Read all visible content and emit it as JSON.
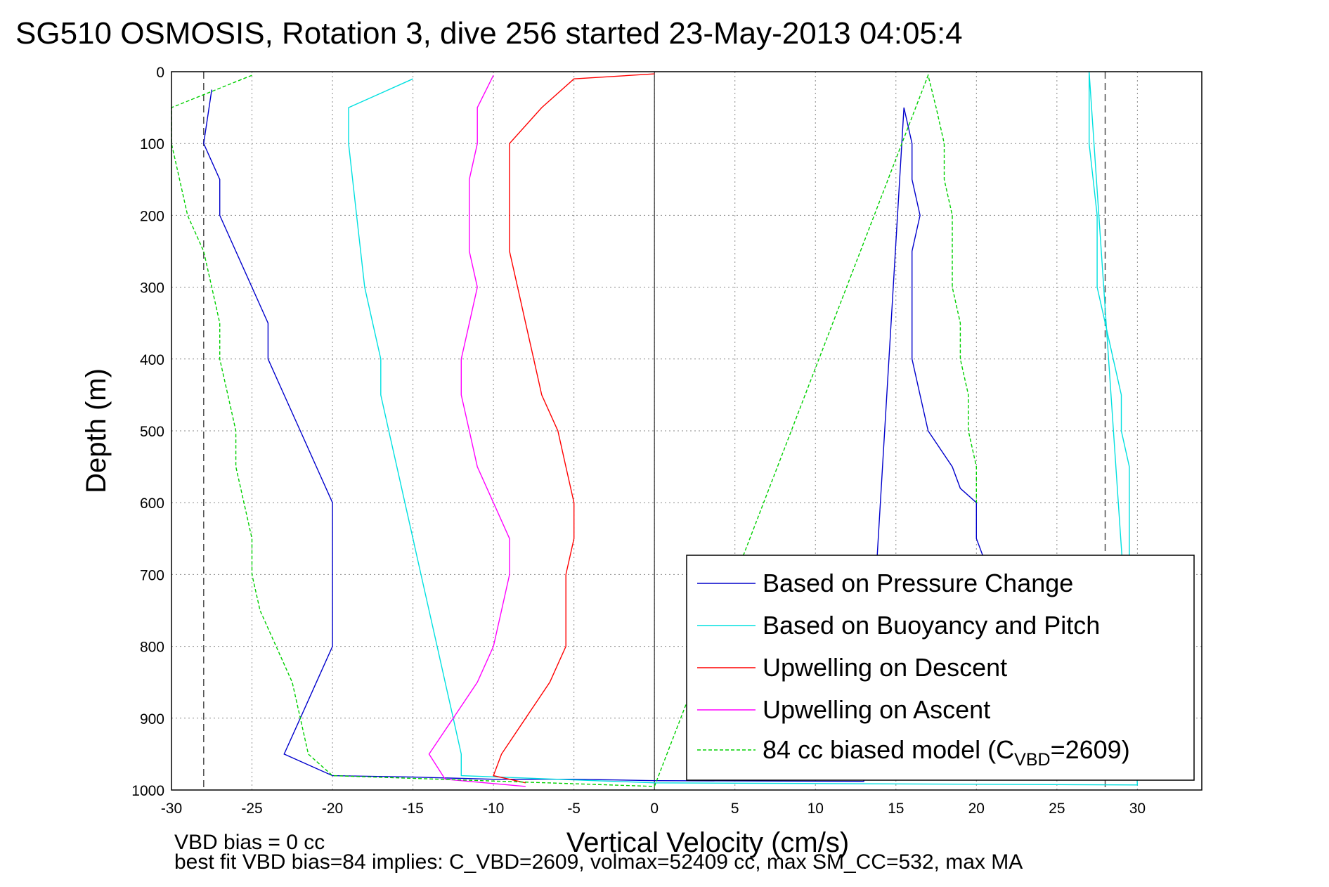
{
  "title": "SG510 OSMOSIS, Rotation 3, dive 256 started 23-May-2013 04:05:4",
  "notes": {
    "line1": "VBD bias = 0 cc",
    "line2": "best fit VBD bias=84 implies: C_VBD=2609, volmax=52409 cc, max SM_CC=532, max MA"
  },
  "colors": {
    "pressure": "#0000cc",
    "buoyancy": "#00e0e0",
    "descent": "#ff0000",
    "ascent": "#ff00ff",
    "model": "#00d000"
  },
  "chart_data": {
    "type": "line",
    "title": "SG510 OSMOSIS, Rotation 3, dive 256 started 23-May-2013 04:05:4",
    "xlabel": "Vertical Velocity (cm/s)",
    "ylabel": "Depth (m)",
    "xlim": [
      -30,
      34
    ],
    "ylim": [
      0,
      1000
    ],
    "y_reversed": true,
    "grid": true,
    "x_ticks": [
      -30,
      -25,
      -20,
      -15,
      -10,
      -5,
      0,
      5,
      10,
      15,
      20,
      25,
      30
    ],
    "y_ticks": [
      0,
      100,
      200,
      300,
      400,
      500,
      600,
      700,
      800,
      900,
      1000
    ],
    "reference_lines": {
      "dashed_x": [
        -28,
        28
      ],
      "solid_x": [
        0
      ]
    },
    "legend_position": "bottom-right",
    "series": [
      {
        "name": "Based on Pressure Change",
        "key": "pressure",
        "style": "solid",
        "points": [
          [
            -27.5,
            25
          ],
          [
            -28,
            100
          ],
          [
            -27,
            150
          ],
          [
            -27,
            200
          ],
          [
            -26,
            250
          ],
          [
            -25,
            300
          ],
          [
            -24,
            350
          ],
          [
            -24,
            400
          ],
          [
            -23,
            450
          ],
          [
            -22,
            500
          ],
          [
            -21,
            550
          ],
          [
            -20,
            600
          ],
          [
            -20,
            650
          ],
          [
            -20,
            700
          ],
          [
            -20,
            750
          ],
          [
            -20,
            800
          ],
          [
            -21,
            850
          ],
          [
            -22,
            900
          ],
          [
            -23,
            950
          ],
          [
            -20,
            980
          ],
          [
            -15,
            982
          ],
          [
            -10,
            985
          ],
          [
            -5,
            985
          ],
          [
            0,
            987
          ],
          [
            13,
            988
          ],
          [
            15.5,
            50
          ],
          [
            16,
            100
          ],
          [
            16,
            150
          ],
          [
            16.5,
            200
          ],
          [
            16,
            250
          ],
          [
            16,
            300
          ],
          [
            16,
            350
          ],
          [
            16,
            400
          ],
          [
            16.5,
            450
          ],
          [
            17,
            500
          ],
          [
            18.5,
            550
          ],
          [
            19,
            580
          ],
          [
            20,
            600
          ],
          [
            20,
            650
          ],
          [
            20.5,
            680
          ]
        ]
      },
      {
        "name": "Based on Buoyancy and Pitch",
        "key": "buoyancy",
        "style": "solid",
        "points": [
          [
            -15,
            10
          ],
          [
            -19,
            50
          ],
          [
            -19,
            100
          ],
          [
            -18.5,
            200
          ],
          [
            -18,
            300
          ],
          [
            -17.5,
            350
          ],
          [
            -17,
            400
          ],
          [
            -17,
            450
          ],
          [
            -16.5,
            500
          ],
          [
            -16,
            550
          ],
          [
            -15.5,
            600
          ],
          [
            -15,
            650
          ],
          [
            -14.5,
            700
          ],
          [
            -14,
            750
          ],
          [
            -13.5,
            800
          ],
          [
            -13,
            850
          ],
          [
            -12.5,
            900
          ],
          [
            -12,
            950
          ],
          [
            -12,
            980
          ],
          [
            0,
            990
          ],
          [
            30,
            993
          ],
          [
            27,
            0
          ],
          [
            27,
            100
          ],
          [
            27.5,
            200
          ],
          [
            27.5,
            300
          ],
          [
            28,
            350
          ],
          [
            28.5,
            400
          ],
          [
            29,
            450
          ],
          [
            29,
            500
          ],
          [
            29.5,
            550
          ],
          [
            29.5,
            600
          ],
          [
            29.5,
            650
          ],
          [
            29.5,
            675
          ]
        ]
      },
      {
        "name": "Upwelling on Descent",
        "key": "descent",
        "style": "solid",
        "points": [
          [
            0,
            3
          ],
          [
            -5,
            10
          ],
          [
            -7,
            50
          ],
          [
            -9,
            100
          ],
          [
            -9,
            150
          ],
          [
            -9,
            200
          ],
          [
            -9,
            250
          ],
          [
            -8.5,
            300
          ],
          [
            -8,
            350
          ],
          [
            -7.5,
            400
          ],
          [
            -7,
            450
          ],
          [
            -6,
            500
          ],
          [
            -5.5,
            550
          ],
          [
            -5,
            600
          ],
          [
            -5,
            650
          ],
          [
            -5.5,
            700
          ],
          [
            -5.5,
            750
          ],
          [
            -5.5,
            800
          ],
          [
            -6.5,
            850
          ],
          [
            -8,
            900
          ],
          [
            -9.5,
            950
          ],
          [
            -10,
            980
          ],
          [
            -8,
            990
          ]
        ]
      },
      {
        "name": "Upwelling on Ascent",
        "key": "ascent",
        "style": "solid",
        "points": [
          [
            -10,
            5
          ],
          [
            -11,
            50
          ],
          [
            -11,
            100
          ],
          [
            -11.5,
            150
          ],
          [
            -11.5,
            200
          ],
          [
            -11.5,
            250
          ],
          [
            -11,
            300
          ],
          [
            -11.5,
            350
          ],
          [
            -12,
            400
          ],
          [
            -12,
            450
          ],
          [
            -11.5,
            500
          ],
          [
            -11,
            550
          ],
          [
            -10,
            600
          ],
          [
            -9,
            650
          ],
          [
            -9,
            700
          ],
          [
            -9.5,
            750
          ],
          [
            -10,
            800
          ],
          [
            -11,
            850
          ],
          [
            -12.5,
            900
          ],
          [
            -14,
            950
          ],
          [
            -13,
            985
          ],
          [
            -8,
            995
          ]
        ]
      },
      {
        "name": "84 cc biased model (C_VBD=2609)",
        "key": "model",
        "style": "dashed",
        "points": [
          [
            -25,
            5
          ],
          [
            -30,
            50
          ],
          [
            -30,
            100
          ],
          [
            -29.5,
            150
          ],
          [
            -29,
            200
          ],
          [
            -28,
            250
          ],
          [
            -27.5,
            300
          ],
          [
            -27,
            350
          ],
          [
            -27,
            400
          ],
          [
            -26.5,
            450
          ],
          [
            -26,
            500
          ],
          [
            -26,
            550
          ],
          [
            -25.5,
            600
          ],
          [
            -25,
            650
          ],
          [
            -25,
            700
          ],
          [
            -24.5,
            750
          ],
          [
            -23.5,
            800
          ],
          [
            -22.5,
            850
          ],
          [
            -22,
            900
          ],
          [
            -21.5,
            950
          ],
          [
            -20,
            980
          ],
          [
            0,
            995
          ],
          [
            17,
            5
          ],
          [
            17.5,
            50
          ],
          [
            18,
            100
          ],
          [
            18,
            150
          ],
          [
            18.5,
            200
          ],
          [
            18.5,
            300
          ],
          [
            19,
            350
          ],
          [
            19,
            400
          ],
          [
            19.5,
            450
          ],
          [
            19.5,
            500
          ],
          [
            20,
            550
          ],
          [
            20,
            600
          ]
        ]
      }
    ],
    "legend": [
      {
        "label": "Based on Pressure Change",
        "key": "pressure"
      },
      {
        "label": "Based on Buoyancy and Pitch",
        "key": "buoyancy"
      },
      {
        "label": "Upwelling on Descent",
        "key": "descent"
      },
      {
        "label": "Upwelling on Ascent",
        "key": "ascent"
      },
      {
        "label_prefix": "84 cc biased model (C",
        "label_sub": "VBD",
        "label_suffix": "=2609)",
        "key": "model"
      }
    ]
  }
}
